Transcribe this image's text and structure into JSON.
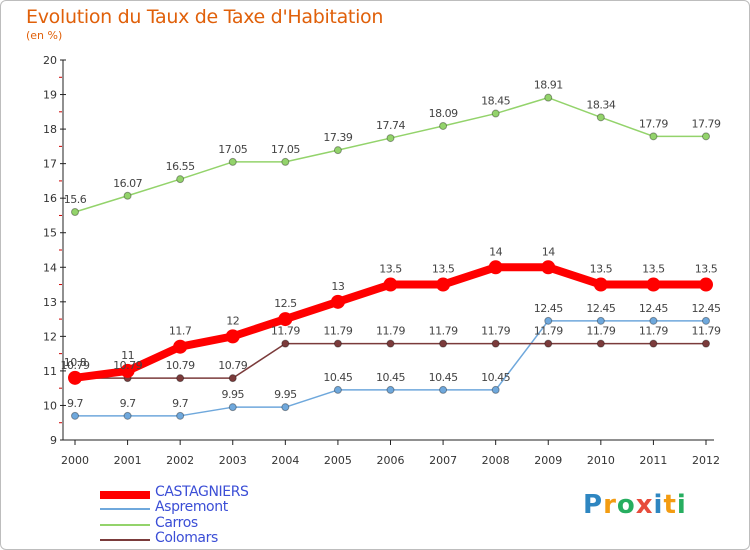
{
  "chart_data": {
    "type": "line",
    "title": "Evolution du Taux de Taxe d'Habitation",
    "unit_label": "(en %)",
    "categories": [
      "2000",
      "2001",
      "2002",
      "2003",
      "2004",
      "2005",
      "2006",
      "2007",
      "2008",
      "2009",
      "2010",
      "2011",
      "2012"
    ],
    "ylim": [
      9,
      20
    ],
    "yticks": [
      "9",
      "10",
      "11",
      "12",
      "13",
      "14",
      "15",
      "16",
      "17",
      "18",
      "19",
      "20"
    ],
    "series": [
      {
        "name": "CASTAGNIERS",
        "color": "#ff0000",
        "values": [
          10.8,
          11,
          11.7,
          12,
          12.5,
          13,
          13.5,
          13.5,
          14,
          14,
          13.5,
          13.5,
          13.5
        ],
        "labels": [
          "10.8",
          "11",
          "11.7",
          "12",
          "12.5",
          "13",
          "13.5",
          "13.5",
          "14",
          "14",
          "13.5",
          "13.5",
          "13.5"
        ]
      },
      {
        "name": "Aspremont",
        "color": "#6fa8dc",
        "values": [
          9.7,
          9.7,
          9.7,
          9.95,
          9.95,
          10.45,
          10.45,
          10.45,
          10.45,
          12.45,
          12.45,
          12.45,
          12.45
        ],
        "labels": [
          "9.7",
          "9.7",
          "9.7",
          "9.95",
          "9.95",
          "10.45",
          "10.45",
          "10.45",
          "10.45",
          "12.45",
          "12.45",
          "12.45",
          "12.45"
        ]
      },
      {
        "name": "Carros",
        "color": "#93d36b",
        "values": [
          15.6,
          16.07,
          16.55,
          17.05,
          17.05,
          17.39,
          17.74,
          18.09,
          18.45,
          18.91,
          18.34,
          17.79,
          17.79
        ],
        "labels": [
          "15.6",
          "16.07",
          "16.55",
          "17.05",
          "17.05",
          "17.39",
          "17.74",
          "18.09",
          "18.45",
          "18.91",
          "18.34",
          "17.79",
          "17.79"
        ]
      },
      {
        "name": "Colomars",
        "color": "#7b3b3b",
        "values": [
          10.79,
          10.79,
          10.79,
          10.79,
          11.79,
          11.79,
          11.79,
          11.79,
          11.79,
          11.79,
          11.79,
          11.79,
          11.79
        ],
        "labels": [
          "10.79",
          "10.79",
          "10.79",
          "10.79",
          "11.79",
          "11.79",
          "11.79",
          "11.79",
          "11.79",
          "11.79",
          "11.79",
          "11.79",
          "11.79"
        ]
      }
    ]
  },
  "logo": {
    "text_p": "P",
    "text_r": "r",
    "text_o": "o",
    "text_x": "x",
    "text_i": "i",
    "text_t": "t",
    "text_i2": "i"
  }
}
